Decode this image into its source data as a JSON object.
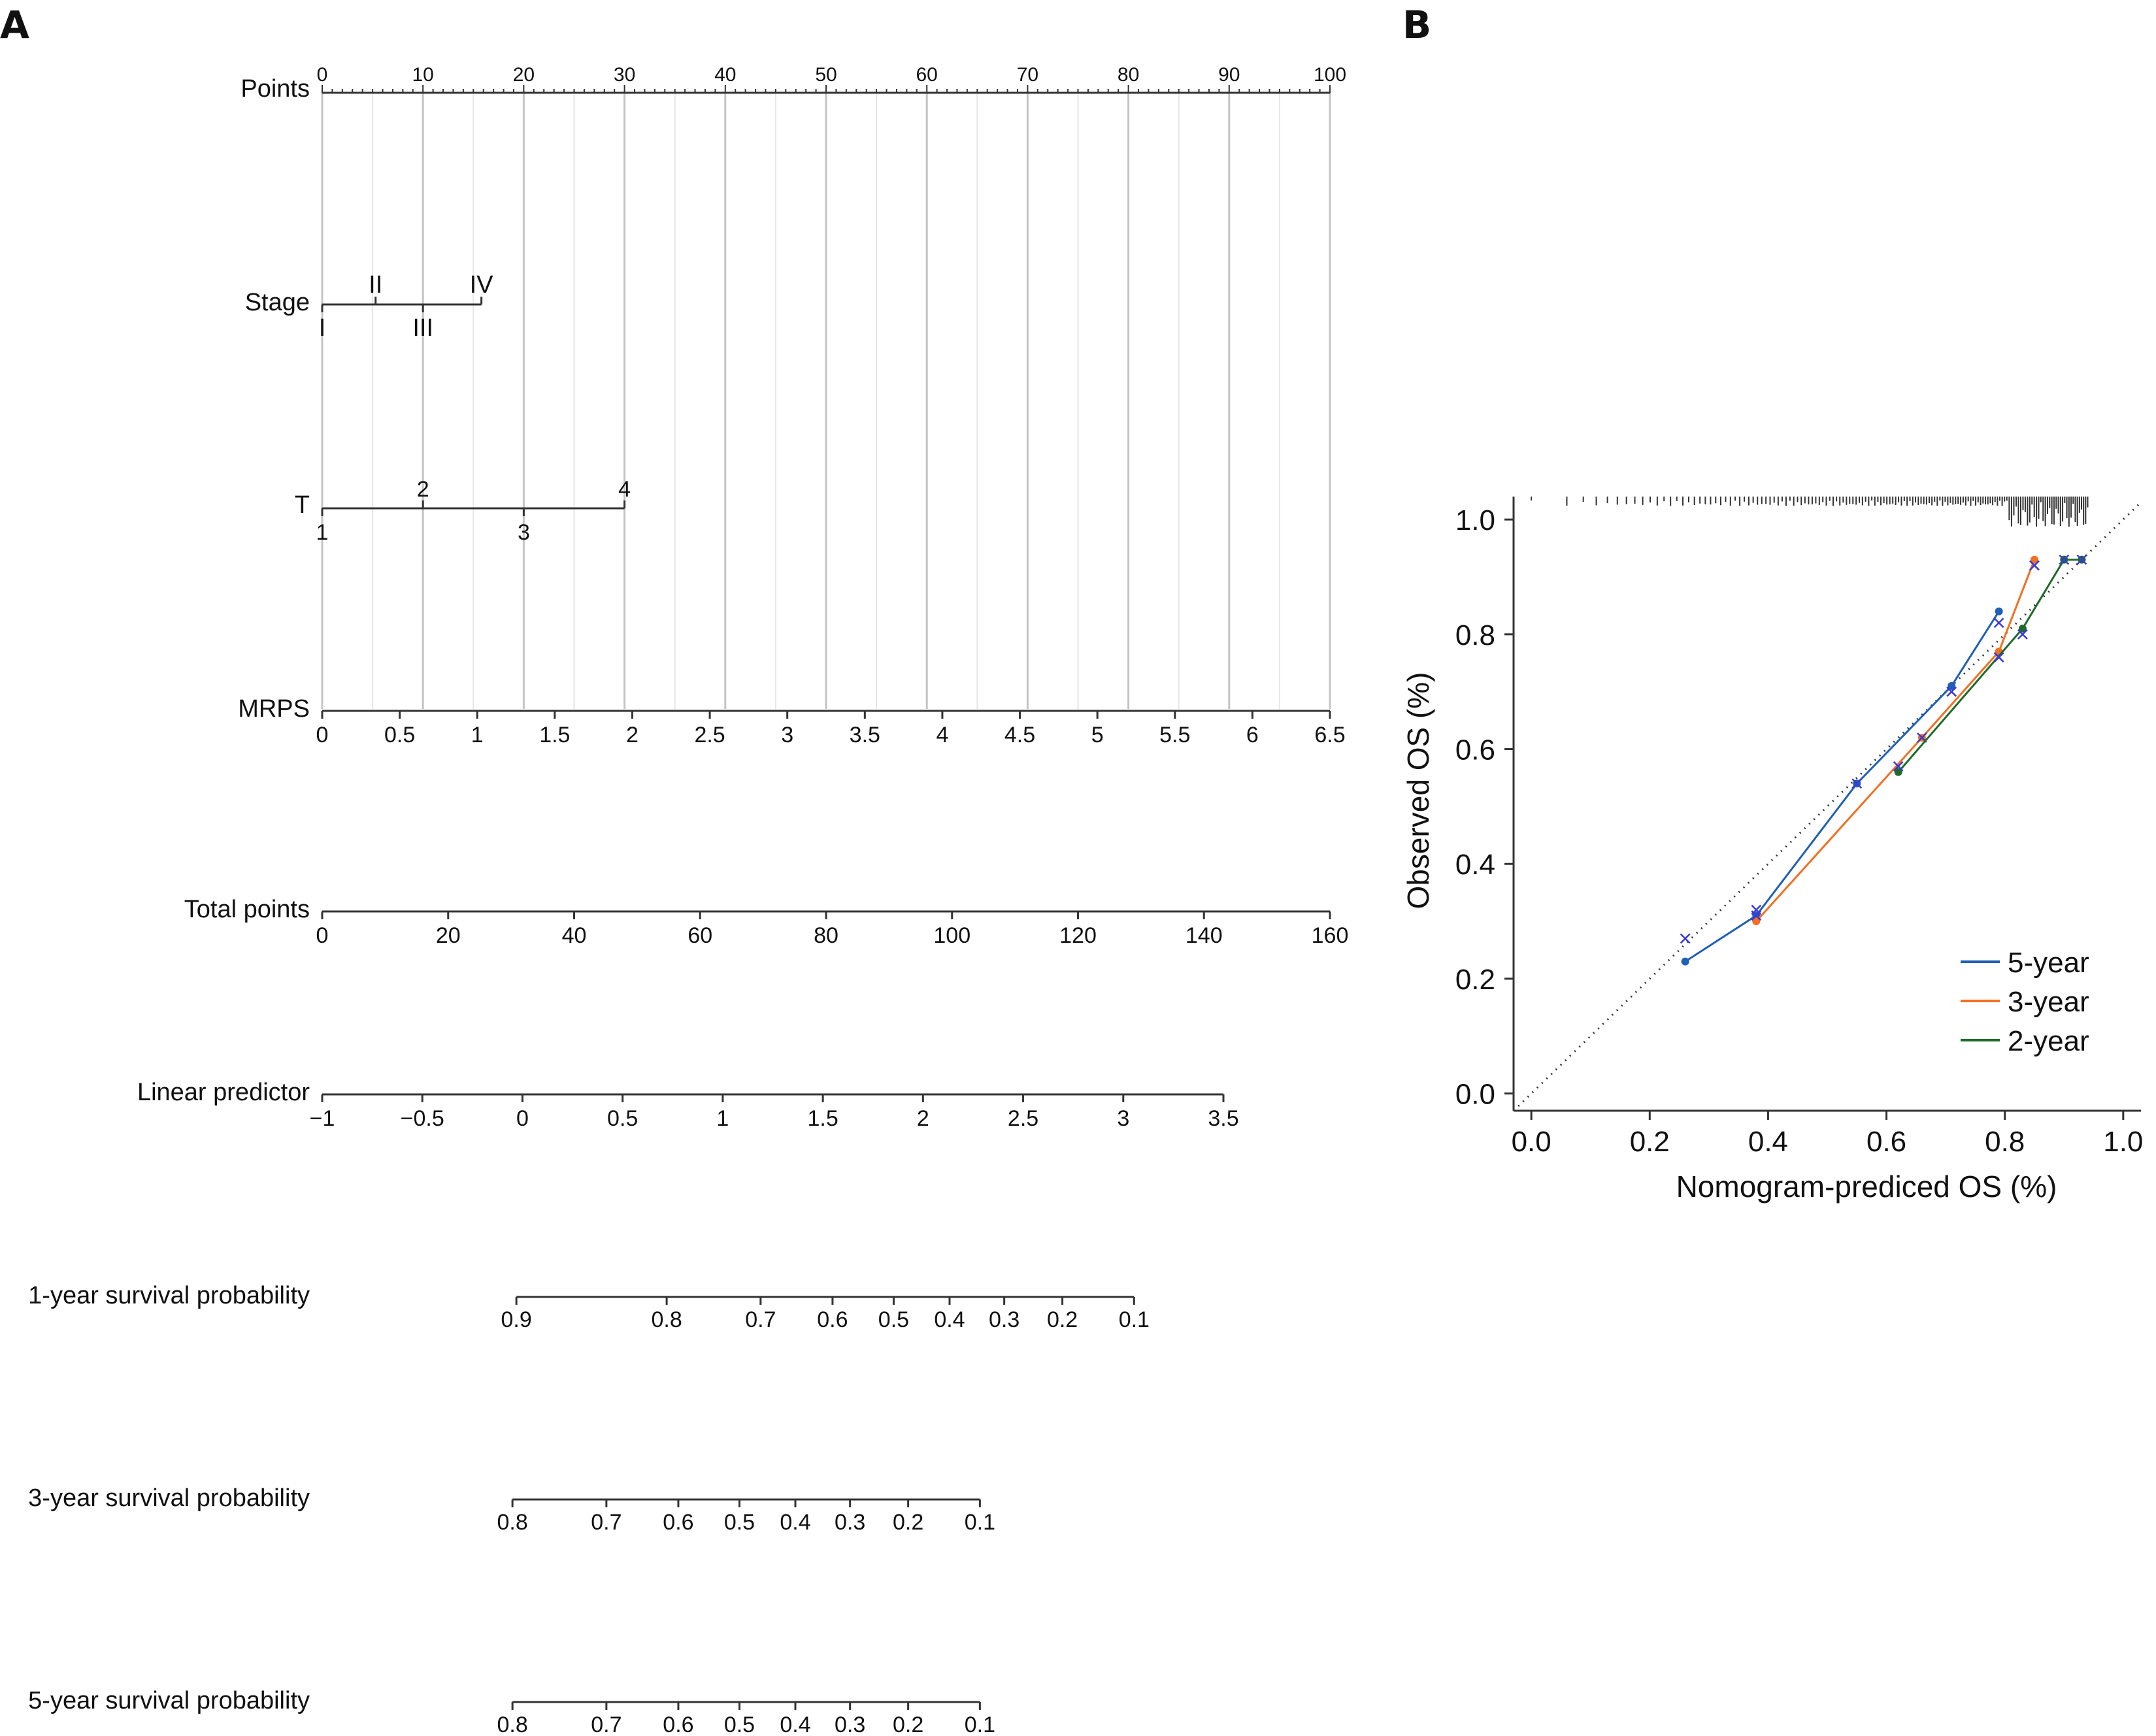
{
  "panels": {
    "a": "A",
    "b": "B"
  },
  "nomogram": {
    "rows": {
      "points": {
        "label": "Points",
        "ticks": [
          "0",
          "10",
          "20",
          "30",
          "40",
          "50",
          "60",
          "70",
          "80",
          "90",
          "100"
        ]
      },
      "stage": {
        "label": "Stage",
        "levels": [
          {
            "text": "I",
            "points": 0
          },
          {
            "text": "II",
            "points": 5.3
          },
          {
            "text": "III",
            "points": 10
          },
          {
            "text": "IV",
            "points": 15.8
          }
        ]
      },
      "t": {
        "label": "T",
        "levels": [
          {
            "text": "1",
            "points": 0
          },
          {
            "text": "2",
            "points": 10
          },
          {
            "text": "3",
            "points": 20
          },
          {
            "text": "4",
            "points": 30
          }
        ]
      },
      "mrps": {
        "label": "MRPS",
        "ticks": [
          "0",
          "0.5",
          "1",
          "1.5",
          "2",
          "2.5",
          "3",
          "3.5",
          "4",
          "4.5",
          "5",
          "5.5",
          "6",
          "6.5"
        ]
      },
      "total_points": {
        "label": "Total points",
        "ticks": [
          "0",
          "20",
          "40",
          "60",
          "80",
          "100",
          "120",
          "140",
          "160"
        ]
      },
      "linear_predictor": {
        "label": "Linear predictor",
        "ticks": [
          "−1",
          "−0.5",
          "0",
          "0.5",
          "1",
          "1.5",
          "2",
          "2.5",
          "3",
          "3.5"
        ]
      },
      "surv1": {
        "label": "1-year survival probability",
        "ticks": [
          "0.9",
          "0.8",
          "0.7",
          "0.6",
          "0.5",
          "0.4",
          "0.3",
          "0.2",
          "0.1"
        ]
      },
      "surv3": {
        "label": "3-year survival probability",
        "ticks": [
          "0.8",
          "0.7",
          "0.6",
          "0.5",
          "0.4",
          "0.3",
          "0.2",
          "0.1"
        ]
      },
      "surv5": {
        "label": "5-year survival probability",
        "ticks": [
          "0.8",
          "0.7",
          "0.6",
          "0.5",
          "0.4",
          "0.3",
          "0.2",
          "0.1"
        ]
      }
    }
  },
  "chart_data": {
    "type": "scatter",
    "xlabel": "Nomogram-prediced OS (%)",
    "ylabel": "Observed OS (%)",
    "xlim": [
      -0.03,
      1.03
    ],
    "ylim": [
      -0.03,
      1.04
    ],
    "xticks": [
      "0.0",
      "0.2",
      "0.4",
      "0.6",
      "0.8",
      "1.0"
    ],
    "yticks": [
      "0.0",
      "0.2",
      "0.4",
      "0.6",
      "0.8",
      "1.0"
    ],
    "reference_line": "diagonal dotted",
    "legend_position": "bottom-right",
    "series": [
      {
        "name": "5-year",
        "color": "#1f5fb5",
        "observed": [
          [
            0.26,
            0.23
          ],
          [
            0.38,
            0.31
          ],
          [
            0.55,
            0.54
          ],
          [
            0.71,
            0.71
          ],
          [
            0.79,
            0.84
          ]
        ],
        "corrected": [
          [
            0.26,
            0.27
          ],
          [
            0.38,
            0.32
          ],
          [
            0.55,
            0.54
          ],
          [
            0.71,
            0.7
          ],
          [
            0.79,
            0.82
          ],
          [
            0.85,
            0.92
          ]
        ]
      },
      {
        "name": "3-year",
        "color": "#f36f21",
        "observed": [
          [
            0.38,
            0.3
          ],
          [
            0.66,
            0.62
          ],
          [
            0.79,
            0.77
          ],
          [
            0.85,
            0.93
          ]
        ],
        "corrected": [
          [
            0.38,
            0.31
          ],
          [
            0.66,
            0.62
          ],
          [
            0.79,
            0.76
          ],
          [
            0.85,
            0.92
          ]
        ]
      },
      {
        "name": "2-year",
        "color": "#1e6b2a",
        "observed": [
          [
            0.62,
            0.56
          ],
          [
            0.83,
            0.81
          ],
          [
            0.9,
            0.93
          ],
          [
            0.93,
            0.93
          ]
        ],
        "corrected": [
          [
            0.62,
            0.57
          ],
          [
            0.79,
            0.76
          ],
          [
            0.83,
            0.8
          ],
          [
            0.9,
            0.93
          ],
          [
            0.93,
            0.93
          ]
        ]
      }
    ]
  }
}
